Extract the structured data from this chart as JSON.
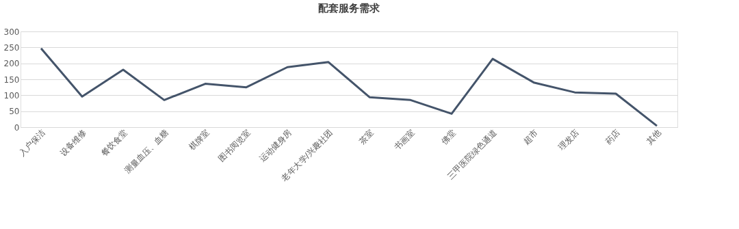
{
  "chart_data": {
    "type": "line",
    "title": "配套服务需求",
    "categories": [
      "入户保洁",
      "设备维修",
      "餐饮食堂",
      "测量血压、血糖",
      "棋牌室",
      "图书阅览室",
      "运动健身房",
      "老年大学/兴趣社团",
      "茶室",
      "书画室",
      "佛堂",
      "三甲医院绿色通道",
      "超市",
      "理发店",
      "药店",
      "其他"
    ],
    "series": [
      {
        "color": "#44546a",
        "values": [
          247,
          96,
          180,
          85,
          136,
          125,
          188,
          204,
          94,
          85,
          42,
          214,
          140,
          109,
          105,
          4
        ]
      }
    ],
    "ylim": [
      0,
      300
    ],
    "yticks": [
      0,
      50,
      100,
      150,
      200,
      250,
      300
    ],
    "grid": "y",
    "legend": false,
    "marker": "none",
    "line_style": "solid"
  }
}
